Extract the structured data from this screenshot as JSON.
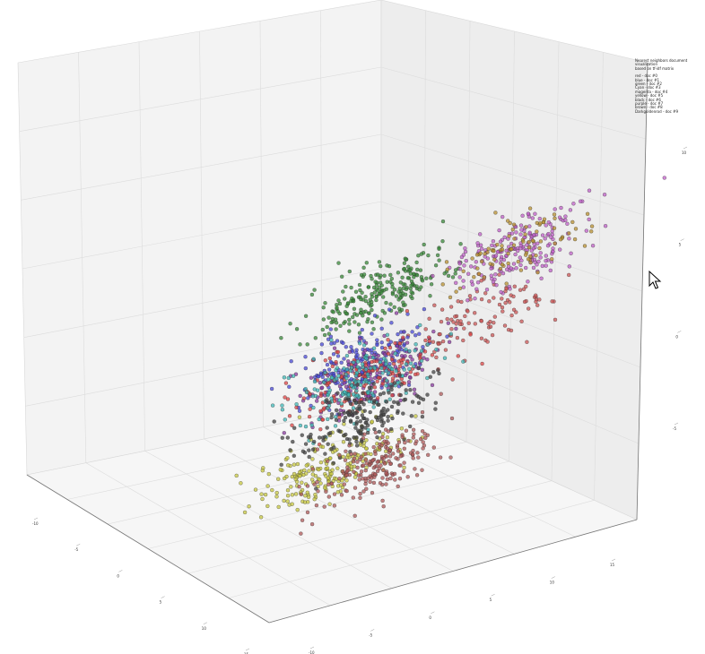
{
  "chart_data": {
    "type": "scatter",
    "projection": "3d",
    "grid": true,
    "legend_position": "top-right",
    "legend_title": [
      "Nearest neighbors document visualization",
      "based on tf-idf matrix"
    ],
    "legend_entries": [
      "red - doc #0",
      "blue - doc #1",
      "green - doc #2",
      "Cyan - doc #3",
      "magenta - doc #4",
      "yellow - doc #5",
      "black - doc #6",
      "purple - doc #7",
      "brown - doc #8",
      "Darkgoldenrod - doc #9"
    ],
    "x_ticks": [
      "-10",
      "-5",
      "0",
      "5",
      "10",
      "15"
    ],
    "y_ticks": [
      "-10",
      "-5",
      "0",
      "5",
      "10",
      "15"
    ],
    "z_ticks": [
      "-5",
      "0",
      "5",
      "10"
    ],
    "series": [
      {
        "color": "#3a8a3a",
        "cluster": "green",
        "center": [
          -9,
          -4,
          7
        ],
        "points": 240
      },
      {
        "color": "#cc5555",
        "cluster": "red (left)",
        "center": [
          -11,
          0,
          1
        ],
        "points": 110
      },
      {
        "color": "#c060c8",
        "cluster": "magenta",
        "center": [
          -2,
          8,
          10
        ],
        "points": 210
      },
      {
        "color": "#b89030",
        "cluster": "darkgoldenrod",
        "center": [
          -1,
          9,
          11
        ],
        "points": 90
      },
      {
        "color": "#4a4ad8",
        "cluster": "blue",
        "center": [
          0,
          1,
          4
        ],
        "points": 200
      },
      {
        "color": "#8a3aa0",
        "cluster": "purple",
        "center": [
          1,
          2,
          3
        ],
        "points": 160
      },
      {
        "color": "#dd4444",
        "cluster": "red (right)",
        "center": [
          9,
          7,
          6
        ],
        "points": 150
      },
      {
        "color": "#40b8b8",
        "cluster": "cyan",
        "center": [
          8,
          6,
          5
        ],
        "points": 170
      },
      {
        "color": "#c8c840",
        "cluster": "yellow",
        "center": [
          6,
          3,
          -3
        ],
        "points": 220
      },
      {
        "color": "#444444",
        "cluster": "black",
        "center": [
          -4,
          -2,
          -3
        ],
        "points": 180
      },
      {
        "color": "#b05a5a",
        "cluster": "brown",
        "center": [
          -1,
          1,
          -7
        ],
        "points": 200
      }
    ]
  }
}
